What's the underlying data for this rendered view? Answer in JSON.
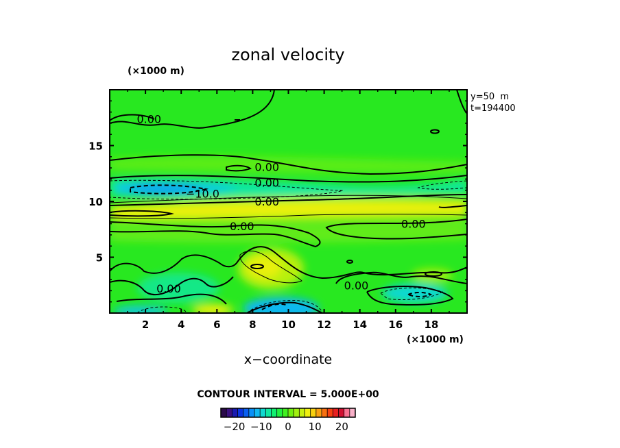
{
  "chart_data": {
    "type": "heatmap",
    "title": "zonal velocity",
    "xlabel": "x−coordinate",
    "x_unit_label": "(×1000 m)",
    "y_unit_label": "(×1000 m)",
    "xlim": [
      0,
      20
    ],
    "ylim": [
      0,
      20
    ],
    "x_ticks": [
      2,
      4,
      6,
      8,
      10,
      12,
      14,
      16,
      18
    ],
    "y_ticks": [
      5,
      10,
      15
    ],
    "info": [
      "y=50  m",
      "t=194400"
    ],
    "contour_interval_label": "CONTOUR INTERVAL = 5.000E+00",
    "colorbar": {
      "min": -25,
      "max": 25,
      "tick_values": [
        -20,
        -10,
        0,
        10,
        20
      ],
      "tick_labels": [
        "−20",
        "−10",
        "0",
        "10",
        "20"
      ],
      "colors": [
        "#2a0a4a",
        "#3a1080",
        "#1a1ab0",
        "#0a34e0",
        "#0a60f0",
        "#0a90f8",
        "#10b8f0",
        "#10d8d0",
        "#10e8a0",
        "#10f070",
        "#20f040",
        "#40f020",
        "#70f010",
        "#a0f010",
        "#c8f010",
        "#f0f010",
        "#f8d010",
        "#f8a010",
        "#f87010",
        "#f84010",
        "#e82020",
        "#d01030",
        "#f87090",
        "#f8b0c8"
      ]
    },
    "contour_labels": [
      {
        "text": "0.00",
        "x": 2.2,
        "y": 17.4
      },
      {
        "text": "0.00",
        "x": 8.8,
        "y": 13.1
      },
      {
        "text": "0.00",
        "x": 8.8,
        "y": 11.7
      },
      {
        "text": "−10.0",
        "x": 5.2,
        "y": 10.7
      },
      {
        "text": "0.00",
        "x": 8.8,
        "y": 10.0
      },
      {
        "text": "0.00",
        "x": 7.4,
        "y": 7.8
      },
      {
        "text": "0.00",
        "x": 17.0,
        "y": 8.0
      },
      {
        "text": "0.00",
        "x": 3.3,
        "y": 2.2
      },
      {
        "text": "0.00",
        "x": 13.8,
        "y": 2.5
      }
    ]
  }
}
